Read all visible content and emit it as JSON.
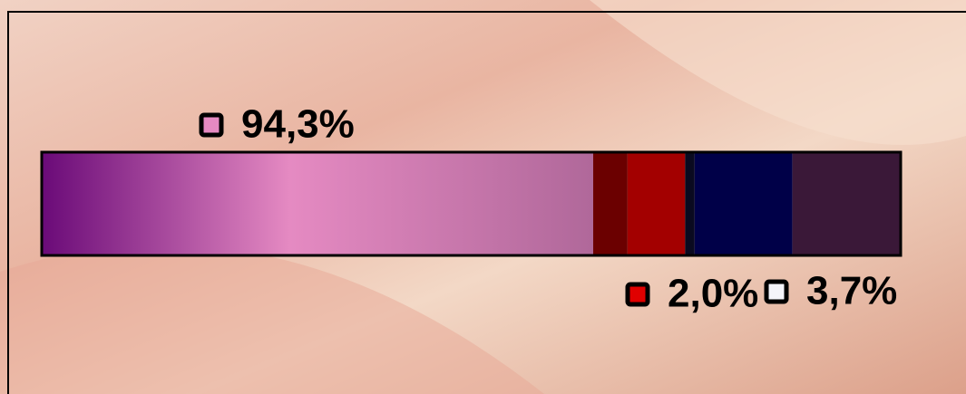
{
  "chart_data": {
    "type": "stacked-bar",
    "orientation": "horizontal",
    "values": [
      64.2,
      4.0,
      6.7,
      1.1,
      11.4,
      12.6
    ],
    "colors": [
      "#e58ac2",
      "#6b0000",
      "#a30000",
      "#0a0a20",
      "#000048",
      "#3a1838"
    ],
    "xlim": [
      0,
      100
    ],
    "annotations": [
      {
        "text": "94,3%",
        "color": "#e58ac2"
      },
      {
        "text": "2,0%",
        "color": "#e00000"
      },
      {
        "text": "3,7%",
        "color": "#f4f4fa"
      }
    ]
  }
}
